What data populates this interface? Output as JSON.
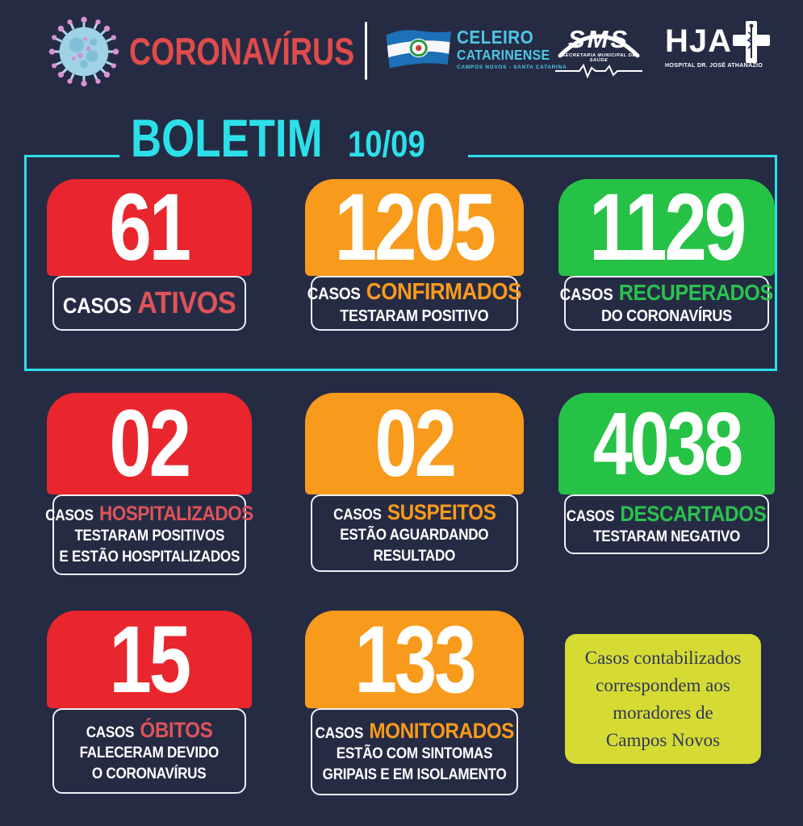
{
  "page": {
    "background": "#262b44",
    "frame_color": "#2ce0e9"
  },
  "header": {
    "title": "CORONAVÍRUS",
    "title_color": "#e04b4b",
    "celeiro": {
      "name": "CELEIRO",
      "name2": "CATARINENSE",
      "caption": "CAMPOS NOVOS - SANTA CATARINA",
      "text_color": "#4cc7e6"
    },
    "sms": {
      "acronym": "SMS",
      "caption": "SECRETARIA MUNICIPAL DE SAÚDE"
    },
    "hja": {
      "acronym": "HJA",
      "caption": "HOSPITAL DR. JOSÉ ATHANÁZIO"
    }
  },
  "bulletin": {
    "title": "BOLETIM",
    "date": "10/09",
    "color": "#2ce0e9"
  },
  "cards": [
    {
      "id": "ativos",
      "value": "61",
      "block_color": "#e9262d",
      "label_prefix": "CASOS",
      "keyword": "ATIVOS",
      "keyword_color": "#de5358",
      "lines": []
    },
    {
      "id": "confirmados",
      "value": "1205",
      "block_color": "#f89a1b",
      "label_prefix": "CASOS",
      "keyword": "CONFIRMADOS",
      "keyword_color": "#f89a1b",
      "lines": [
        "TESTARAM POSITIVO"
      ]
    },
    {
      "id": "recuperados",
      "value": "1129",
      "block_color": "#25c246",
      "label_prefix": "CASOS",
      "keyword": "RECUPERADOS",
      "keyword_color": "#29c24e",
      "lines": [
        "DO CORONAVÍRUS"
      ]
    },
    {
      "id": "hospitalizados",
      "value": "02",
      "block_color": "#e9262d",
      "label_prefix": "CASOS",
      "keyword": "HOSPITALIZADOS",
      "keyword_color": "#de5358",
      "lines": [
        "TESTARAM POSITIVOS",
        "E ESTÃO HOSPITALIZADOS"
      ]
    },
    {
      "id": "suspeitos",
      "value": "02",
      "block_color": "#f89a1b",
      "label_prefix": "CASOS",
      "keyword": "SUSPEITOS",
      "keyword_color": "#f89a1b",
      "lines": [
        "ESTÃO AGUARDANDO",
        "RESULTADO"
      ]
    },
    {
      "id": "descartados",
      "value": "4038",
      "block_color": "#25c246",
      "label_prefix": "CASOS",
      "keyword": "DESCARTADOS",
      "keyword_color": "#29c24e",
      "lines": [
        "TESTARAM NEGATIVO"
      ]
    },
    {
      "id": "obitos",
      "value": "15",
      "block_color": "#e9262d",
      "label_prefix": "CASOS",
      "keyword": "ÓBITOS",
      "keyword_color": "#de5358",
      "lines": [
        "FALECERAM DEVIDO",
        "O CORONAVÍRUS"
      ]
    },
    {
      "id": "monitorados",
      "value": "133",
      "block_color": "#f89a1b",
      "label_prefix": "CASOS",
      "keyword": "MONITORADOS",
      "keyword_color": "#f89a1b",
      "lines": [
        "ESTÃO COM SINTOMAS",
        "GRIPAIS E EM ISOLAMENTO"
      ]
    }
  ],
  "note": {
    "lines": [
      "Casos contabilizados",
      "correspondem aos",
      "moradores de",
      "Campos Novos"
    ],
    "background": "#d5db33",
    "text_color": "#30365a"
  }
}
